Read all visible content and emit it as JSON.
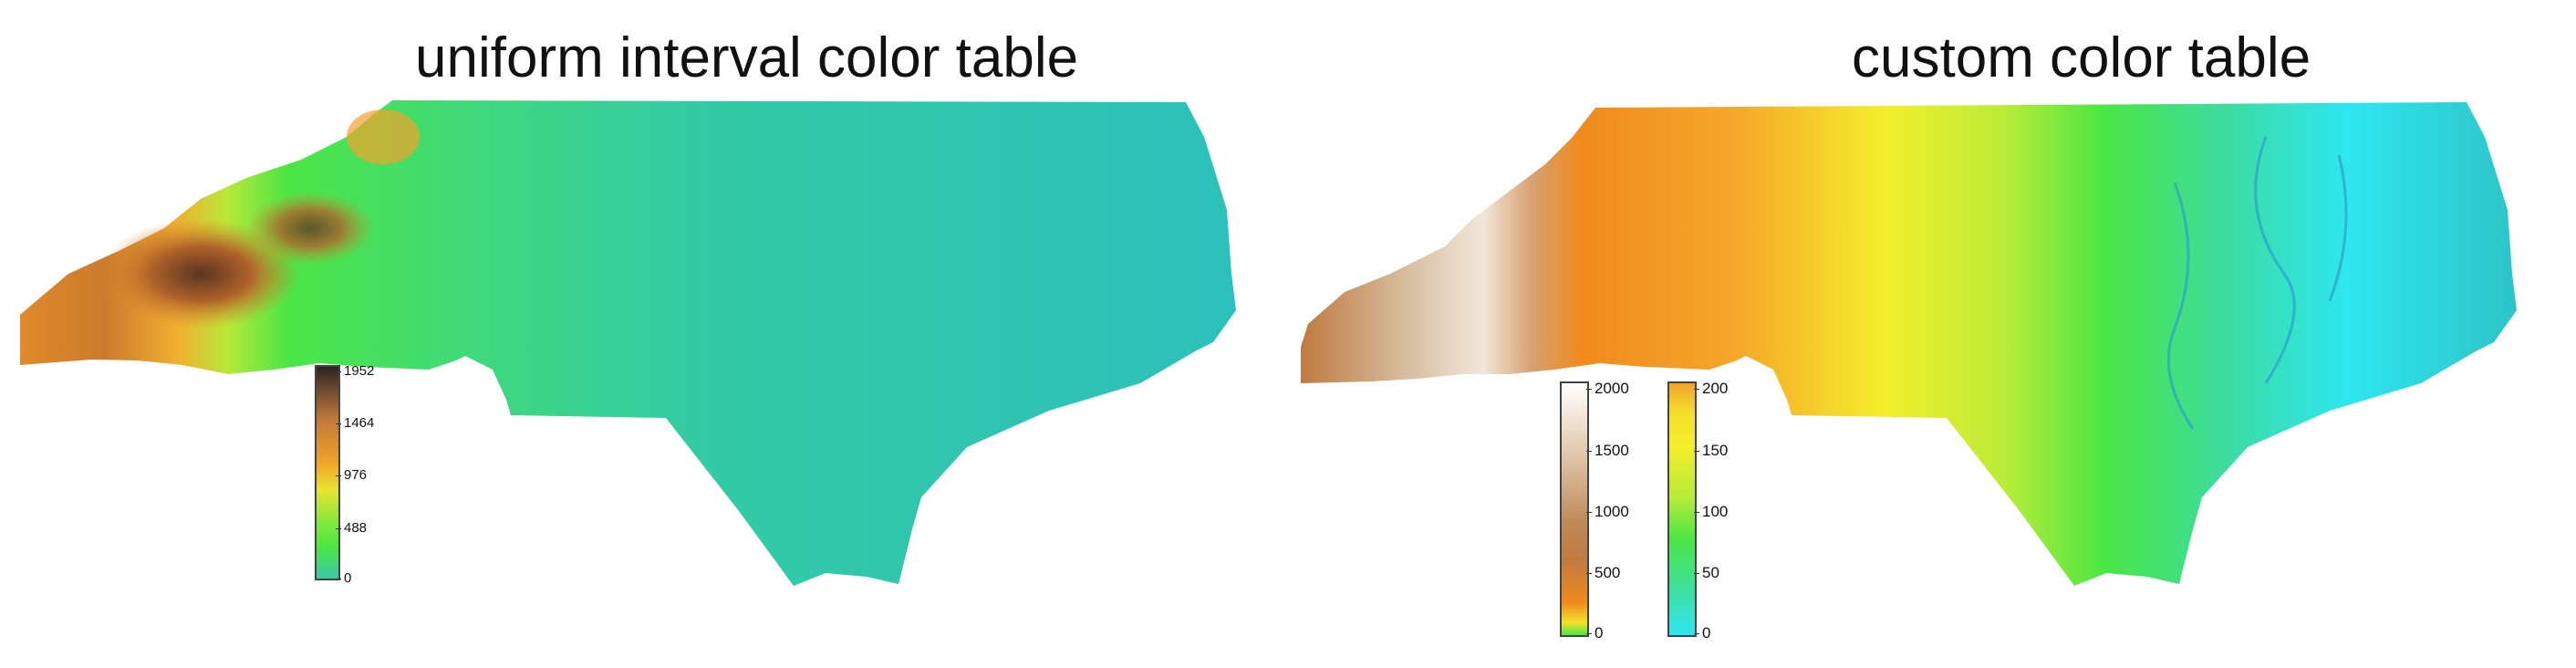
{
  "titles": {
    "left": "uniform interval color table",
    "right": "custom color table"
  },
  "colors": {
    "cyan": "#2bc0bb",
    "teal_mid": "#3dc8a6",
    "green": "#4be645",
    "yellow_green": "#b8ec38",
    "yellow": "#f5ee2c",
    "orange": "#f08a1e",
    "brown": "#b67a48",
    "dark_brown": "#4a2e1c",
    "tan": "#d9c0a2",
    "white": "#fbfaf8",
    "bright_cyan": "#2ee6f0"
  },
  "legends": {
    "uniform": {
      "ticks": [
        "1952",
        "1464",
        "976",
        "488",
        "0"
      ]
    },
    "custom_high": {
      "ticks": [
        "2000",
        "1500",
        "1000",
        "500",
        "0"
      ]
    },
    "custom_low": {
      "ticks": [
        "200",
        "150",
        "100",
        "50",
        "0"
      ]
    }
  }
}
